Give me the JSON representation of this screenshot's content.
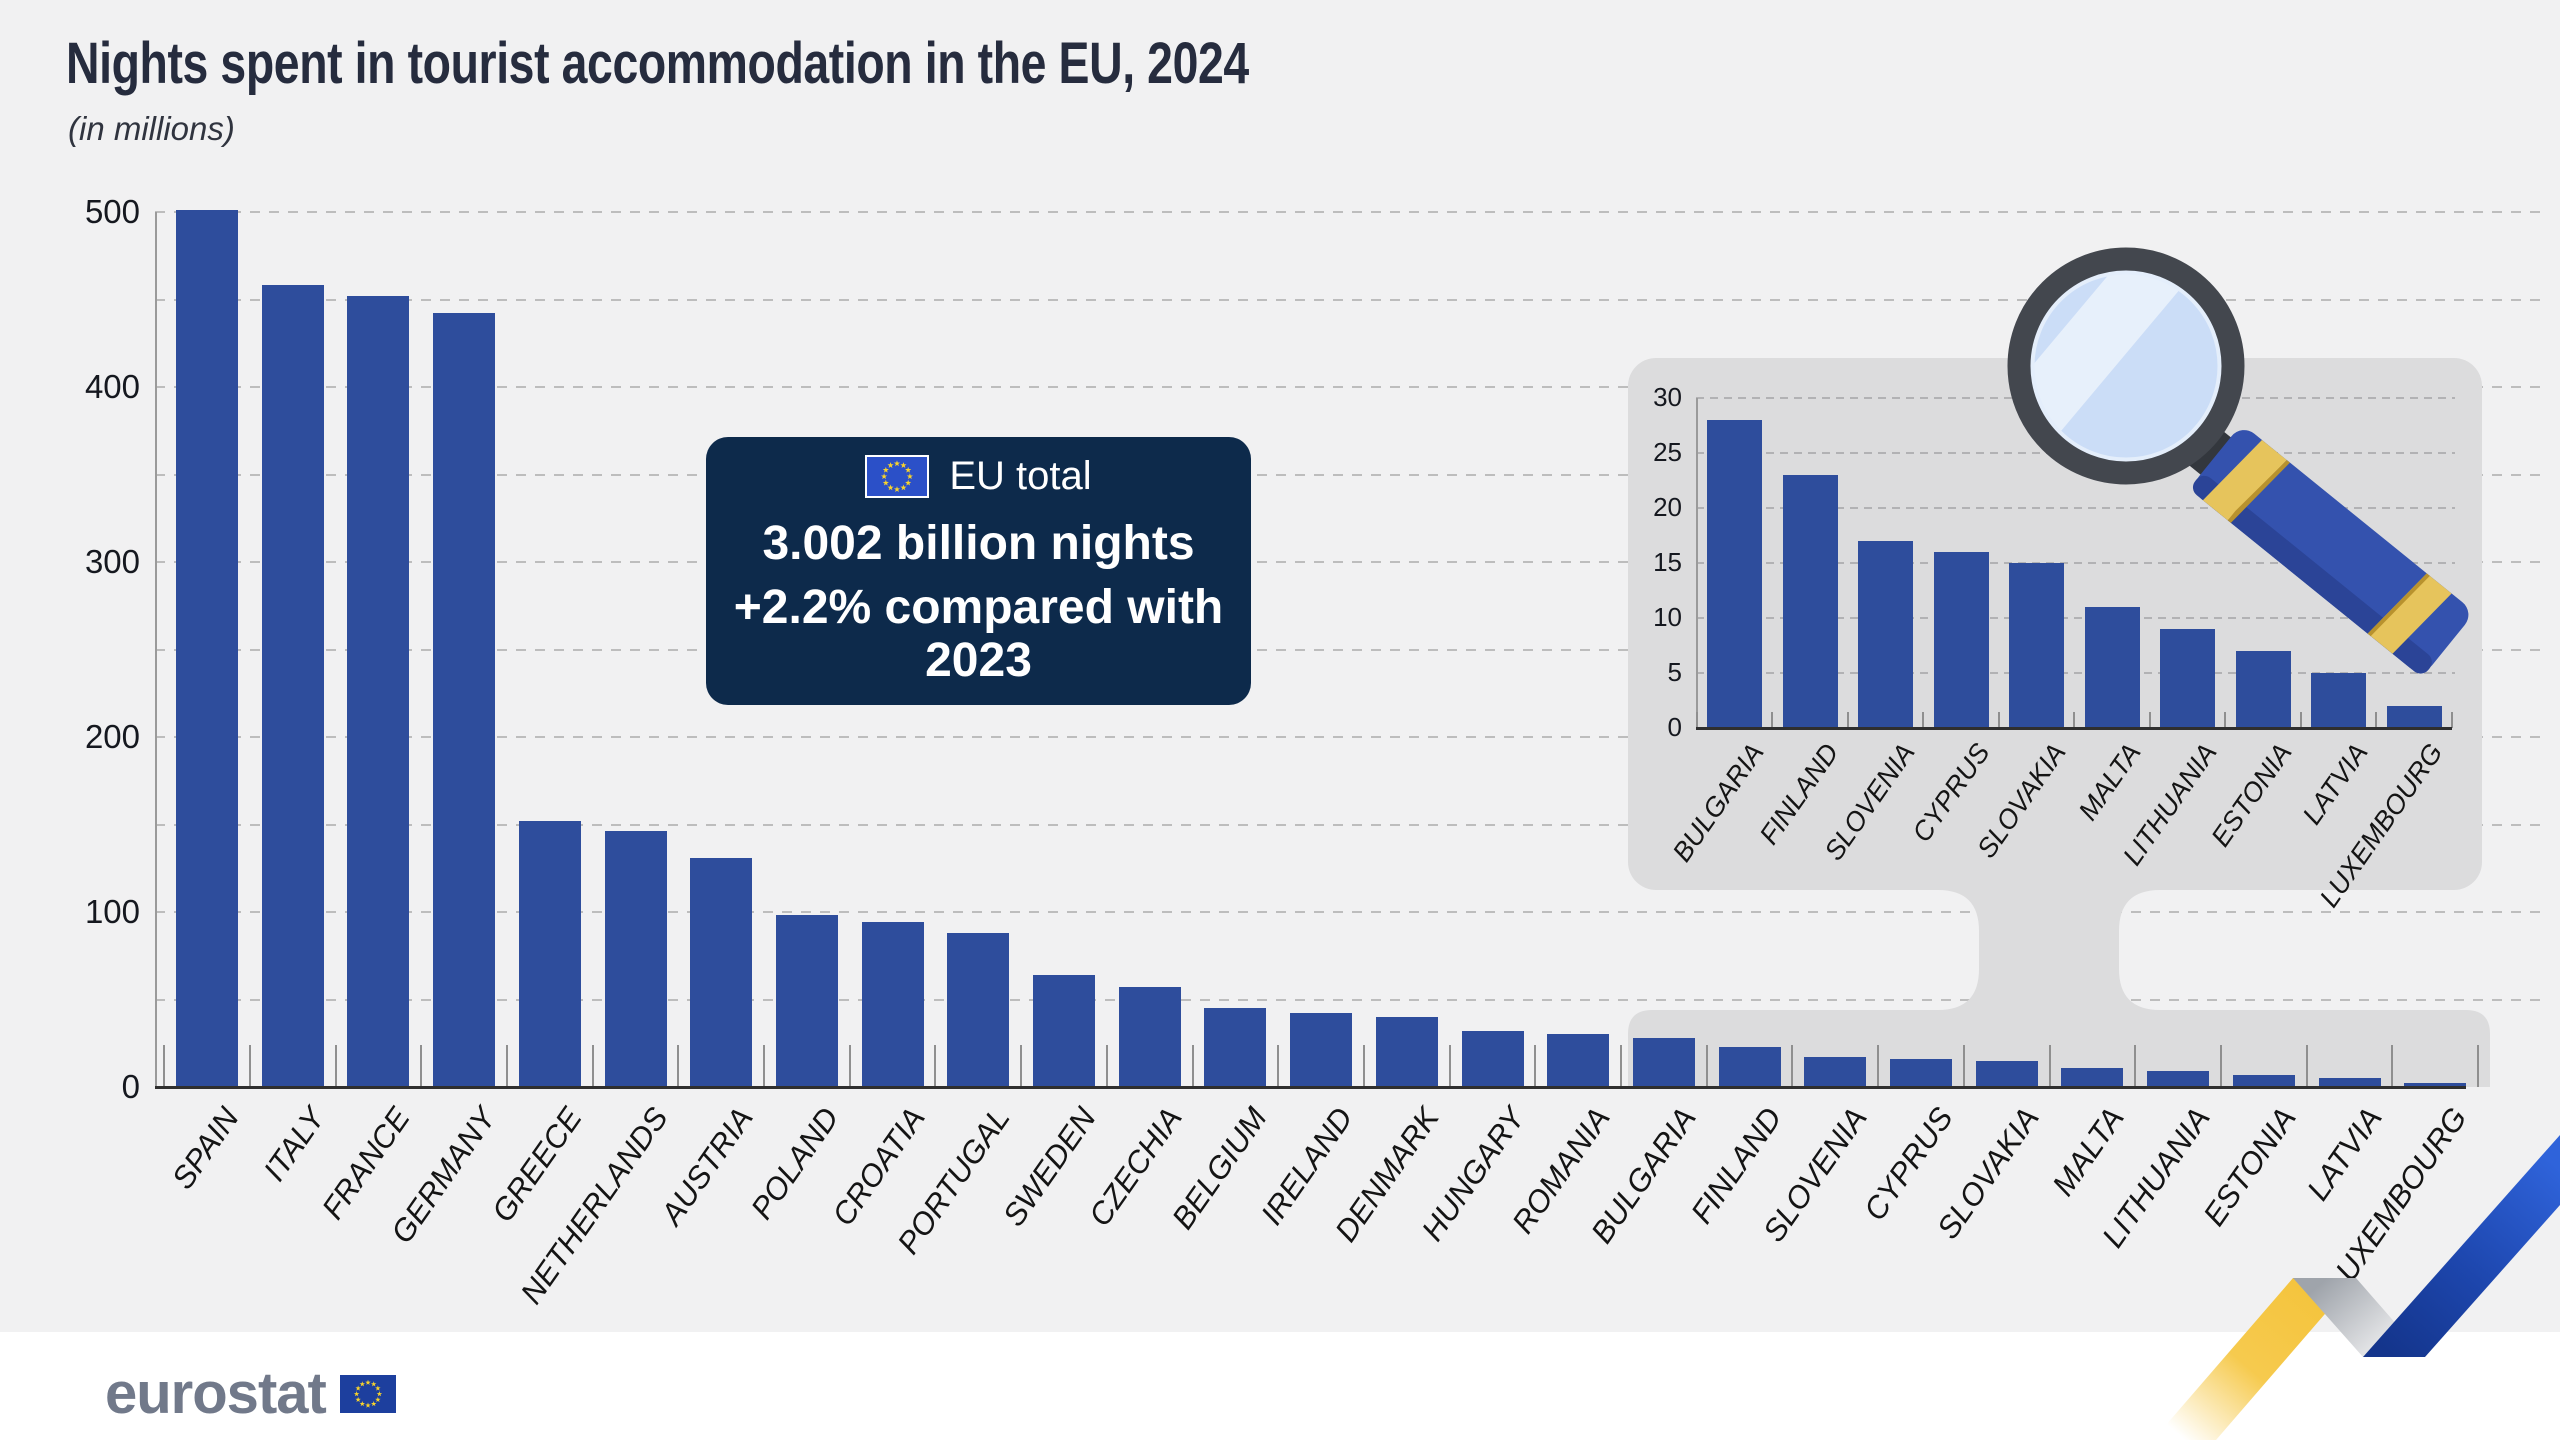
{
  "title": "Nights spent in tourist accommodation in the EU, 2024",
  "subtitle": "(in millions)",
  "callout": {
    "flag_icon": "eu-flag-icon",
    "label": "EU total",
    "value": "3.002 billion nights",
    "change": "+2.2% compared with 2023"
  },
  "footer": {
    "logo": "eurostat",
    "flag_icon": "eu-flag-icon"
  },
  "colors": {
    "background": "#f1f1f2",
    "footer_background": "#ffffff",
    "bar": "#2e4d9c",
    "callout_background": "#0d2a4b",
    "panel_gray": "#dcdcdd",
    "title_text": "#262c3e",
    "flag_blue": "#2b50c8",
    "flag_star_yellow": "#f8d32c",
    "logo_flag_blue": "#1d3f9e",
    "ribbon_yellow": "#f5c53e",
    "ribbon_blue": "#2f63da",
    "magnifier_rim": "#43474e",
    "magnifier_lens": "#cbddf7",
    "magnifier_handle": "#3452ae",
    "magnifier_gold": "#e6c45c"
  },
  "chart_data": [
    {
      "type": "bar",
      "name": "main-chart",
      "title": "Nights spent in tourist accommodation in the EU, 2024",
      "ylabel": "(in millions)",
      "ylim": [
        0,
        500
      ],
      "grid_step": 50,
      "ytick_labels": [
        0,
        100,
        200,
        300,
        400,
        500
      ],
      "grid": "dashed-horizontal",
      "legend_position": "none",
      "categories": [
        "SPAIN",
        "ITALY",
        "FRANCE",
        "GERMANY",
        "GREECE",
        "NETHERLANDS",
        "AUSTRIA",
        "POLAND",
        "CROATIA",
        "PORTUGAL",
        "SWEDEN",
        "CZECHIA",
        "BELGIUM",
        "IRELAND",
        "DENMARK",
        "HUNGARY",
        "ROMANIA",
        "BULGARIA",
        "FINLAND",
        "SLOVENIA",
        "CYPRUS",
        "SLOVAKIA",
        "MALTA",
        "LITHUANIA",
        "ESTONIA",
        "LATVIA",
        "LUXEMBOURG"
      ],
      "values": [
        501,
        458,
        452,
        442,
        152,
        146,
        131,
        98,
        94,
        88,
        64,
        57,
        45,
        42,
        40,
        32,
        30,
        28,
        23,
        17,
        16,
        15,
        11,
        9,
        7,
        5,
        2
      ]
    },
    {
      "type": "bar",
      "name": "inset-zoom-chart",
      "title": "",
      "ylim": [
        0,
        30
      ],
      "grid_step": 5,
      "ytick_labels": [
        0,
        5,
        10,
        15,
        20,
        25,
        30
      ],
      "grid": "dashed-horizontal",
      "legend_position": "none",
      "categories": [
        "BULGARIA",
        "FINLAND",
        "SLOVENIA",
        "CYPRUS",
        "SLOVAKIA",
        "MALTA",
        "LITHUANIA",
        "ESTONIA",
        "LATVIA",
        "LUXEMBOURG"
      ],
      "values": [
        28,
        23,
        17,
        16,
        15,
        11,
        9,
        7,
        5,
        2
      ]
    }
  ]
}
